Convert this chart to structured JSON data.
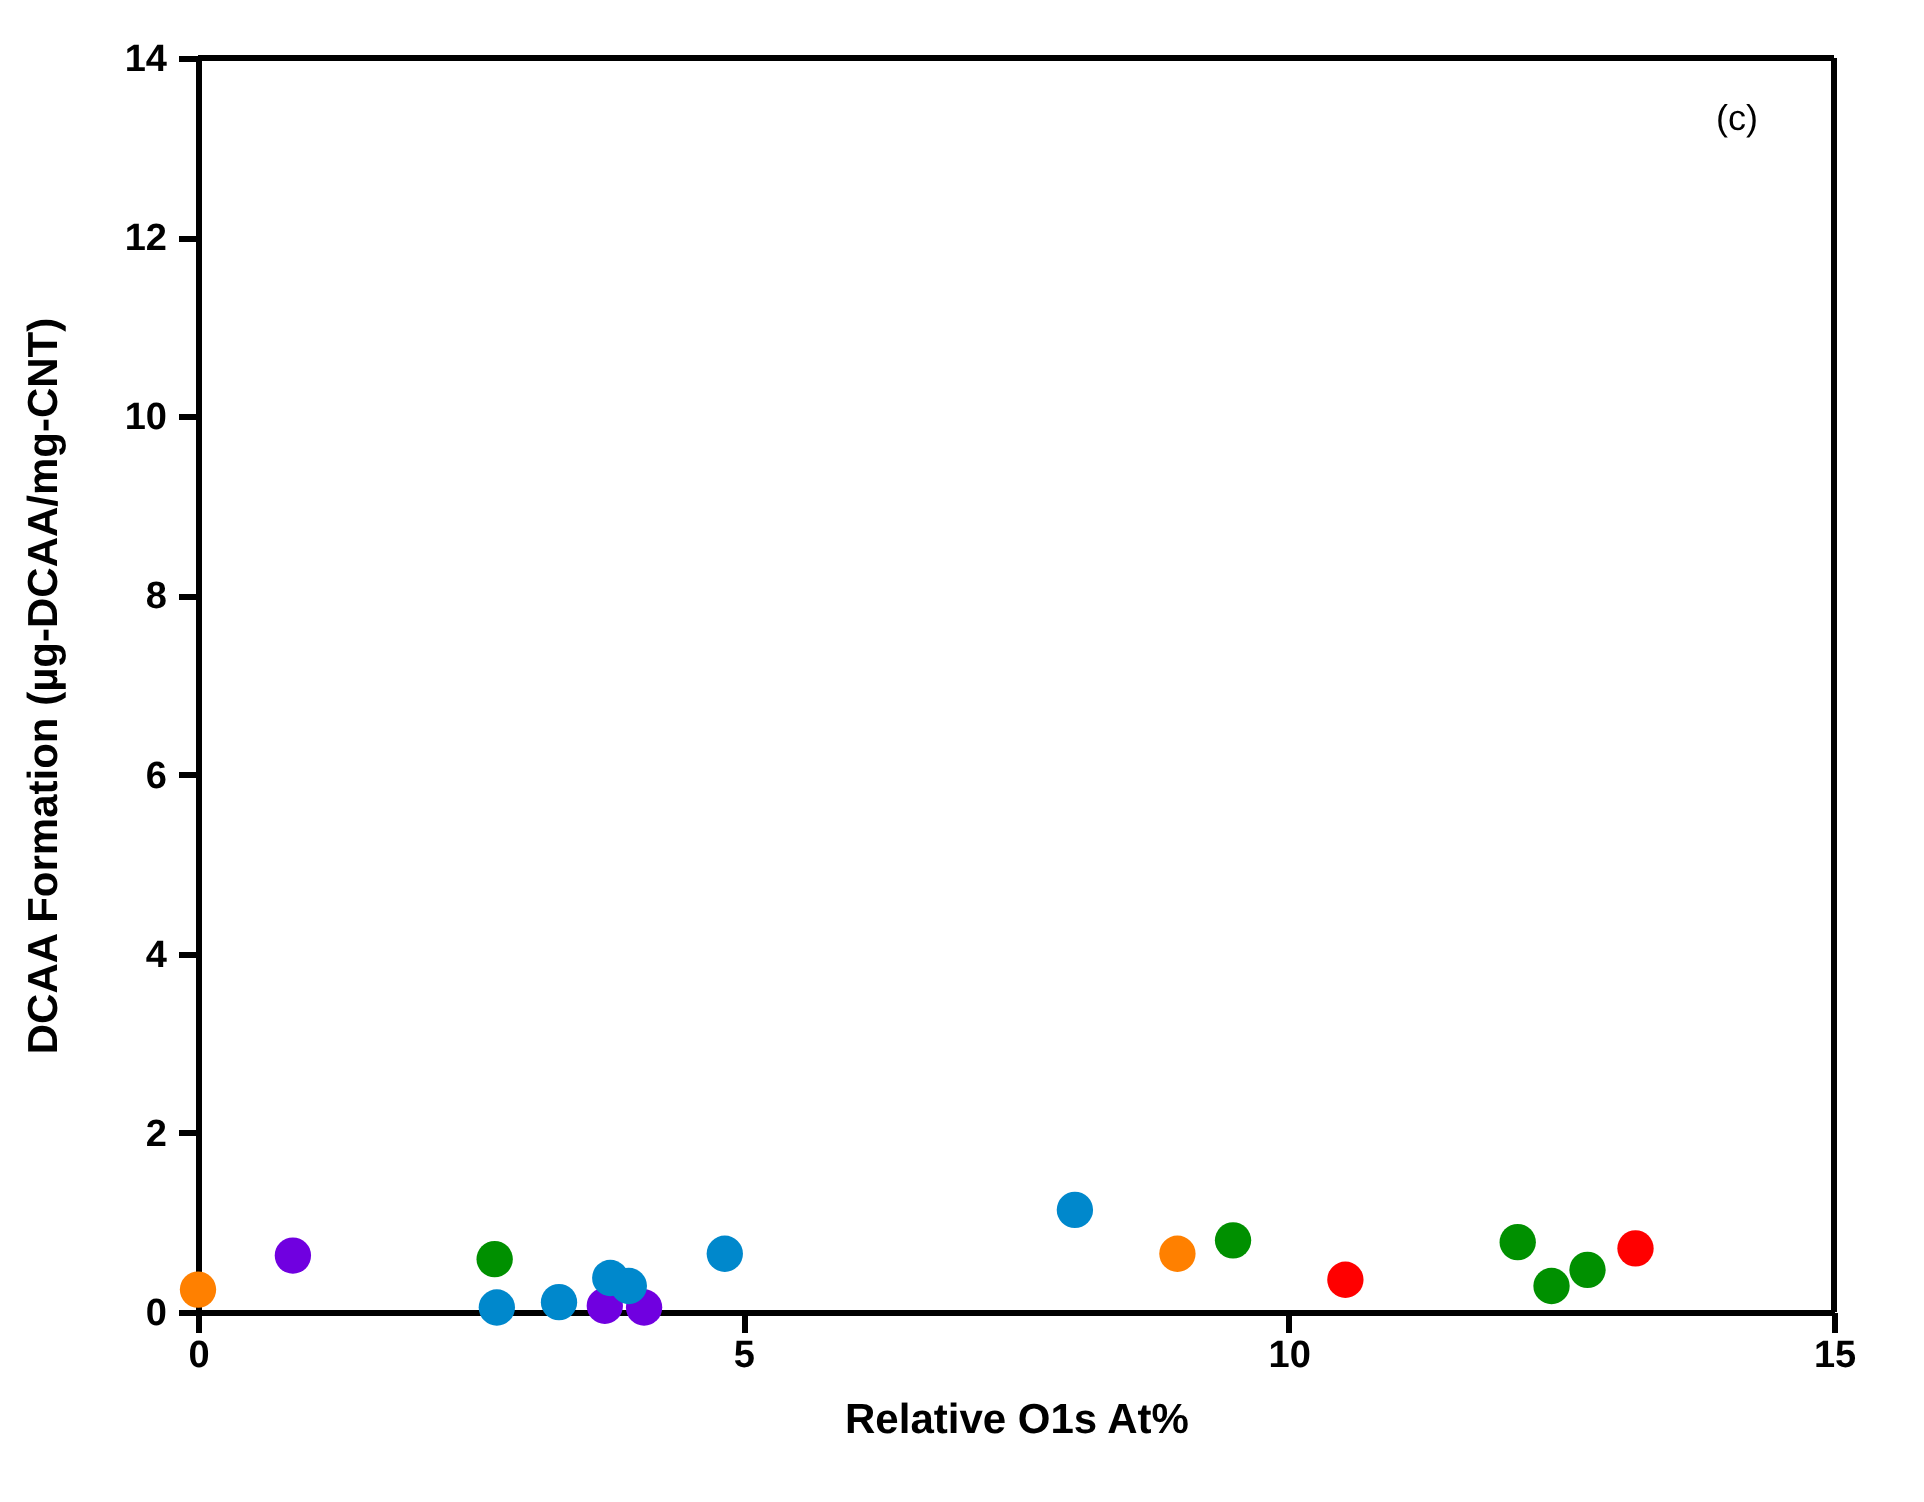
{
  "chart_data": {
    "type": "scatter",
    "xlabel": "Relative O1s At%",
    "ylabel": "DCAA Formation (µg-DCAA/mg-CNT)",
    "annotations": [
      "(c)"
    ],
    "xlim": [
      0,
      15
    ],
    "xticks": [
      0,
      5,
      10,
      15
    ],
    "ylim": [
      0,
      14
    ],
    "yticks": [
      0,
      2,
      4,
      6,
      8,
      10,
      12,
      14
    ],
    "grid": false,
    "legend": false,
    "marker": "circle",
    "series": [
      {
        "color": "#ff8000",
        "x": [
          0,
          8.98
        ],
        "values": [
          0.25,
          0.65
        ]
      },
      {
        "color": "#7000e0",
        "x": [
          0.87,
          3.73,
          4.09
        ],
        "values": [
          0.63,
          0.07,
          0.05
        ]
      },
      {
        "color": "#009000",
        "x": [
          2.72,
          9.49,
          12.1,
          12.41,
          12.74
        ],
        "values": [
          0.59,
          0.8,
          0.78,
          0.29,
          0.47
        ]
      },
      {
        "color": "#0088cc",
        "x": [
          2.74,
          3.31,
          3.78,
          3.95,
          4.83,
          8.04
        ],
        "values": [
          0.05,
          0.11,
          0.38,
          0.29,
          0.65,
          1.14
        ]
      },
      {
        "color": "#ff0000",
        "x": [
          10.52,
          13.18
        ],
        "values": [
          0.36,
          0.71
        ]
      }
    ]
  }
}
